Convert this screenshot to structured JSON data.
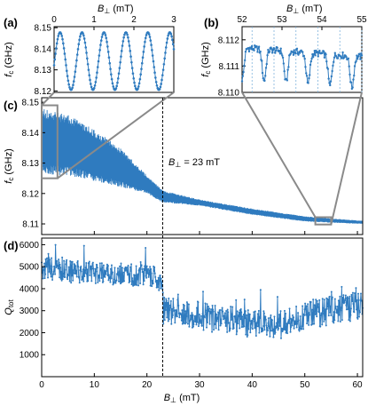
{
  "colors": {
    "series": "#2f7bbf",
    "zoom_lines": "#8a8a8a",
    "marker_line": "#000000"
  },
  "chart_data": [
    {
      "id": "a",
      "type": "line",
      "panel_label": "(a)",
      "xlabel": "B",
      "xlabel_sub": "⊥",
      "xlabel_unit": " (mT)",
      "ylabel": "f",
      "ylabel_sub": "c",
      "ylabel_unit": " (GHz)",
      "xlim": [
        0,
        3
      ],
      "ylim": [
        8.1193,
        8.1505
      ],
      "xticks": [
        0,
        1,
        2,
        3
      ],
      "yticks": [
        8.15,
        8.14,
        8.13,
        8.12
      ],
      "ytick_labels": [
        "8.15",
        "8.14",
        "8.13",
        "8.12"
      ],
      "x_axis_position": "top",
      "oscillation": {
        "period_mT": 0.55,
        "min_GHz": 8.1205,
        "max_GHz": 8.1478,
        "points": 170
      }
    },
    {
      "id": "b",
      "type": "line",
      "panel_label": "(b)",
      "xlabel": "B",
      "xlabel_sub": "⊥",
      "xlabel_unit": " (mT)",
      "ylabel": "f",
      "ylabel_sub": "c",
      "ylabel_unit": " (GHz)",
      "xlim": [
        52,
        55
      ],
      "ylim": [
        8.11,
        8.1125
      ],
      "xticks": [
        52,
        53,
        54,
        55
      ],
      "yticks": [
        8.112,
        8.111,
        8.11
      ],
      "ytick_labels": [
        "8.112",
        "8.111",
        "8.110"
      ],
      "x_axis_position": "top",
      "vertical_gridlines": [
        52.25,
        52.8,
        53.35,
        53.9,
        54.45,
        55.0
      ],
      "oscillation": {
        "period_mT": 0.55,
        "points": 170
      }
    },
    {
      "id": "c",
      "type": "line",
      "panel_label": "(c)",
      "ylabel": "f",
      "ylabel_sub": "c",
      "ylabel_unit": " (GHz)",
      "xlim": [
        0,
        61
      ],
      "ylim": [
        8.1065,
        8.1515
      ],
      "xticks": [
        0,
        10,
        20,
        30,
        40,
        50,
        60
      ],
      "yticks": [
        8.15,
        8.14,
        8.13,
        8.12,
        8.11
      ],
      "ytick_labels": [
        "8.15",
        "8.14",
        "8.13",
        "8.12",
        "8.11"
      ],
      "annotation": {
        "text_main": "B",
        "text_sub": "⊥",
        "text_rest": " =  23 mT",
        "x": 23
      },
      "envelope": [
        {
          "B": 0,
          "upper": 8.148,
          "lower": 8.126
        },
        {
          "B": 5,
          "upper": 8.146,
          "lower": 8.126
        },
        {
          "B": 10,
          "upper": 8.141,
          "lower": 8.124
        },
        {
          "B": 15,
          "upper": 8.135,
          "lower": 8.122
        },
        {
          "B": 20,
          "upper": 8.126,
          "lower": 8.12
        },
        {
          "B": 23,
          "upper": 8.121,
          "lower": 8.117
        },
        {
          "B": 30,
          "upper": 8.118,
          "lower": 8.116
        },
        {
          "B": 40,
          "upper": 8.115,
          "lower": 8.113
        },
        {
          "B": 50,
          "upper": 8.1125,
          "lower": 8.1108
        },
        {
          "B": 55,
          "upper": 8.1118,
          "lower": 8.1104
        },
        {
          "B": 61,
          "upper": 8.111,
          "lower": 8.11
        }
      ],
      "zoom_boxes": [
        {
          "target": "a",
          "x": [
            0,
            3
          ],
          "y": [
            8.125,
            8.149
          ]
        },
        {
          "target": "b",
          "x": [
            52,
            55
          ],
          "y": [
            8.1098,
            8.1122
          ]
        }
      ]
    },
    {
      "id": "d",
      "type": "line",
      "panel_label": "(d)",
      "xlabel": "B",
      "xlabel_sub": "⊥",
      "xlabel_unit": " (mT)",
      "ylabel": "Q",
      "ylabel_sub": "tot",
      "ylabel_unit": "",
      "xlim": [
        0,
        61
      ],
      "ylim": [
        0,
        6300
      ],
      "xticks": [
        0,
        10,
        20,
        30,
        40,
        50,
        60
      ],
      "yticks": [
        6000,
        5000,
        4000,
        3000,
        2000,
        1000
      ],
      "ytick_labels": [
        "6000",
        "5000",
        "4000",
        "3000",
        "2000",
        "1000"
      ],
      "trend": [
        {
          "B": 0,
          "Q": 4950
        },
        {
          "B": 10,
          "Q": 4700
        },
        {
          "B": 20,
          "Q": 4600
        },
        {
          "B": 22.9,
          "Q": 4500
        },
        {
          "B": 23.1,
          "Q": 3000
        },
        {
          "B": 30,
          "Q": 2800
        },
        {
          "B": 40,
          "Q": 2400
        },
        {
          "B": 45,
          "Q": 2300
        },
        {
          "B": 50,
          "Q": 2800
        },
        {
          "B": 60,
          "Q": 3200
        }
      ]
    }
  ]
}
